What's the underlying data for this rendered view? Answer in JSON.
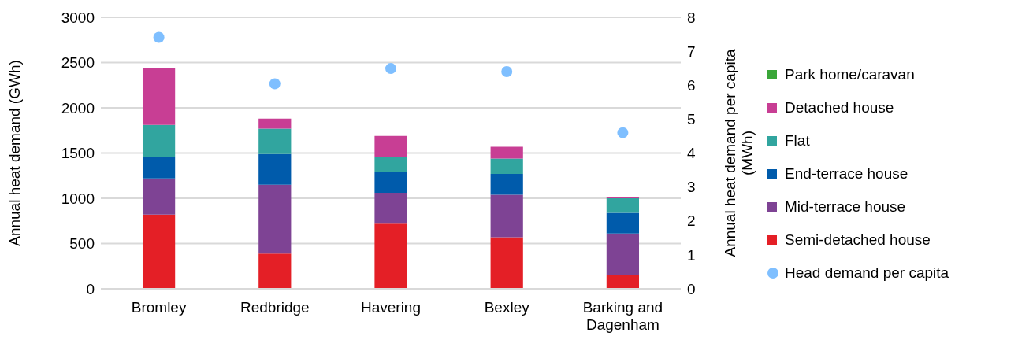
{
  "chart_data": {
    "type": "bar",
    "stacked": true,
    "categories": [
      "Bromley",
      "Redbridge",
      "Havering",
      "Bexley",
      "Barking and Dagenham"
    ],
    "ylabel": "Annual heat demand (GWh)",
    "y2label": "Annual heat demand per capita (MWh)",
    "ylim": [
      0,
      3000
    ],
    "yticks": [
      0,
      500,
      1000,
      1500,
      2000,
      2500,
      3000
    ],
    "y2lim": [
      0,
      8
    ],
    "y2ticks": [
      0,
      1,
      2,
      3,
      4,
      5,
      6,
      7,
      8
    ],
    "grid": "y",
    "legend": "right",
    "series": [
      {
        "name": "Semi-detached house",
        "color": "#e41f26",
        "values": [
          820,
          390,
          720,
          570,
          150
        ]
      },
      {
        "name": "Mid-terrace house",
        "color": "#7e4394",
        "values": [
          400,
          760,
          340,
          470,
          460
        ]
      },
      {
        "name": "End-terrace house",
        "color": "#005bab",
        "values": [
          240,
          340,
          230,
          230,
          230
        ]
      },
      {
        "name": "Flat",
        "color": "#31a59f",
        "values": [
          350,
          280,
          170,
          170,
          160
        ]
      },
      {
        "name": "Detached house",
        "color": "#c83e94",
        "values": [
          630,
          110,
          230,
          130,
          10
        ]
      },
      {
        "name": "Park home/caravan",
        "color": "#3aa639",
        "values": [
          null,
          null,
          null,
          null,
          null
        ]
      },
      {
        "name": "Head demand per capita",
        "type": "scatter",
        "axis": "y2",
        "color": "#7fbfff",
        "marker": "circle",
        "values": [
          7.41,
          6.04,
          6.49,
          6.4,
          4.6
        ]
      }
    ]
  }
}
